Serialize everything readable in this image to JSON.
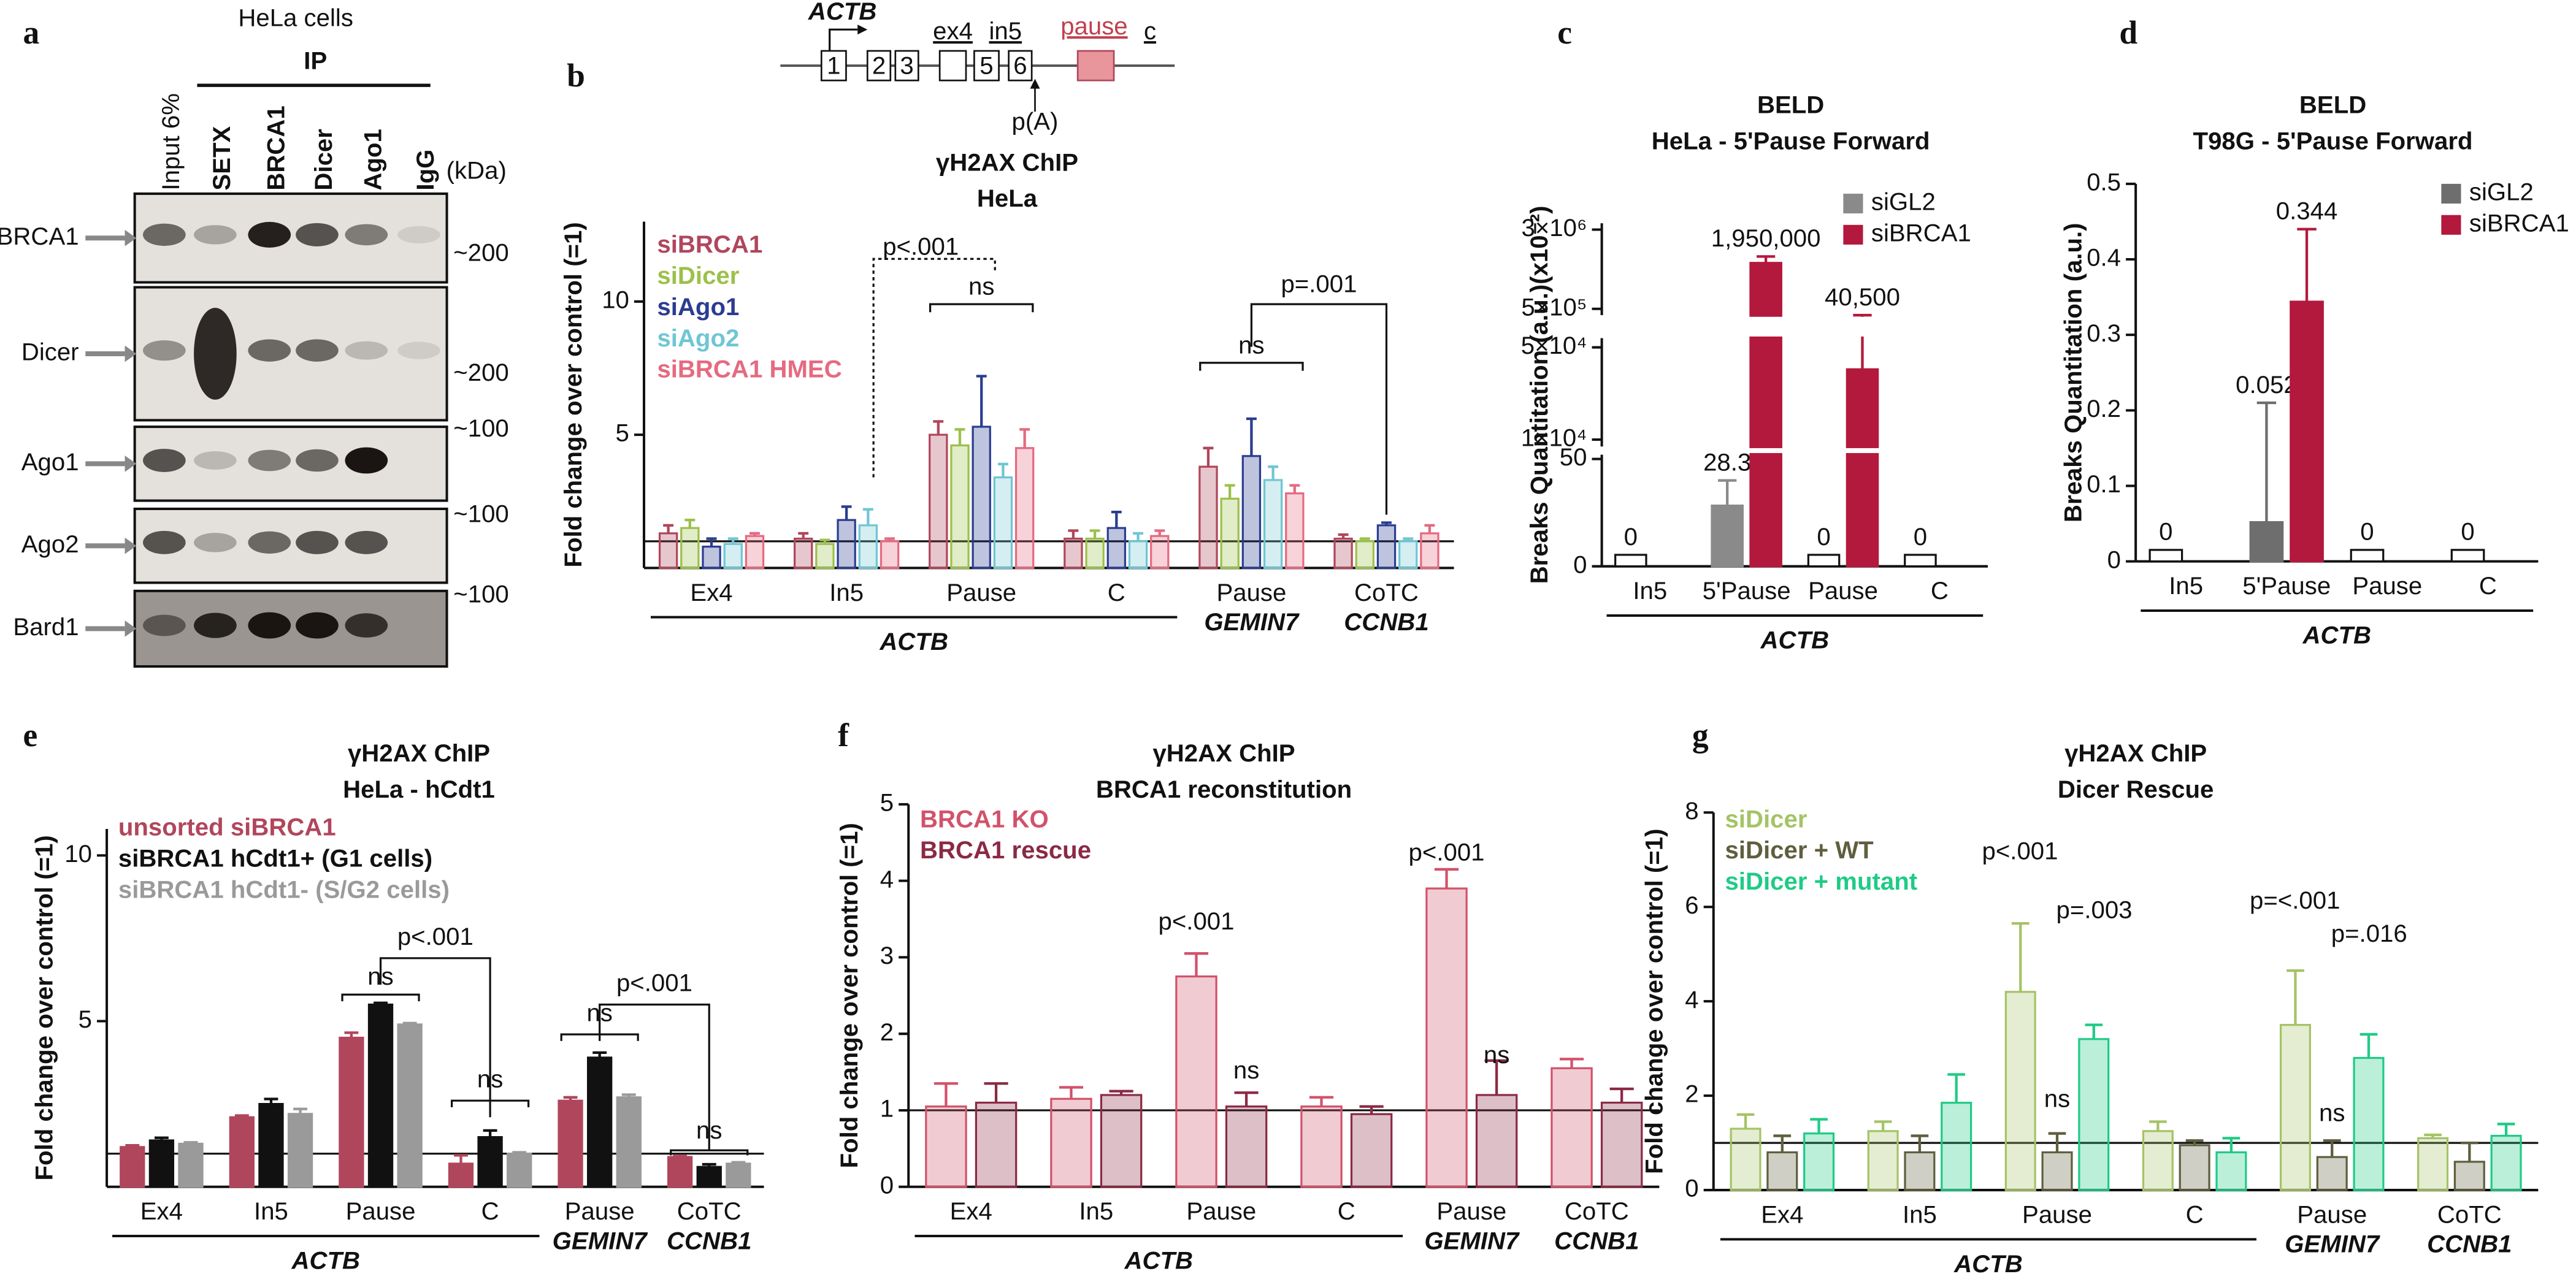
{
  "panel_labels": [
    "a",
    "b",
    "c",
    "d",
    "e",
    "f",
    "g"
  ],
  "blot": {
    "title": "HeLa cells",
    "group": "IP",
    "unit": "(kDa)",
    "lanes": [
      "Input 6%",
      "SETX",
      "BRCA1",
      "Dicer",
      "Ago1",
      "IgG"
    ],
    "rows": [
      {
        "name": "BRCA1",
        "marker": "~200"
      },
      {
        "name": "Dicer",
        "marker": "~200"
      },
      {
        "name": "Ago1",
        "marker": "~100"
      },
      {
        "name": "Ago2",
        "marker": "~100"
      },
      {
        "name": "Bard1",
        "marker": "~100"
      }
    ]
  },
  "gene_diagram": {
    "gene": "ACTB",
    "exons": [
      "1",
      "2",
      "3",
      "",
      "5",
      "6"
    ],
    "regions": [
      "ex4",
      "in5",
      "pause",
      "c"
    ],
    "polya": "p(A)"
  },
  "chart_data": [
    {
      "type": "bar",
      "title": "γH2AX ChIP",
      "subtitle": "HeLa",
      "ylabel": "Fold change over control (=1)",
      "categories": [
        "Ex4",
        "In5",
        "Pause",
        "C",
        "Pause",
        "CoTC"
      ],
      "group_labels": [
        "ACTB",
        "GEMIN7",
        "CCNB1"
      ],
      "ylim": [
        0,
        13
      ],
      "yticks": [
        5,
        10
      ],
      "reference_line": 1,
      "bar_fill": "light",
      "legend_style": "text",
      "series": [
        {
          "name": "siBRCA1",
          "color": "#b0465c",
          "values": [
            1.3,
            1.1,
            5.0,
            1.1,
            3.8,
            1.1
          ],
          "errors": [
            0.3,
            0.2,
            0.5,
            0.3,
            0.7,
            0.15
          ]
        },
        {
          "name": "siDicer",
          "color": "#9cc04a",
          "values": [
            1.5,
            0.9,
            4.6,
            1.1,
            2.6,
            1.0
          ],
          "errors": [
            0.3,
            0.15,
            0.6,
            0.3,
            0.5,
            0.1
          ]
        },
        {
          "name": "siAgo1",
          "color": "#2b3d91",
          "values": [
            0.8,
            1.8,
            5.3,
            1.5,
            4.2,
            1.6
          ],
          "errors": [
            0.3,
            0.5,
            1.9,
            0.6,
            1.4,
            0.1
          ]
        },
        {
          "name": "siAgo2",
          "color": "#6fc6d3",
          "values": [
            0.9,
            1.6,
            3.4,
            1.0,
            3.3,
            1.0
          ],
          "errors": [
            0.2,
            0.6,
            0.5,
            0.3,
            0.5,
            0.1
          ]
        },
        {
          "name": "siBRCA1 HMEC",
          "color": "#e56a80",
          "values": [
            1.2,
            1.0,
            4.5,
            1.2,
            2.8,
            1.3
          ],
          "errors": [
            0.1,
            0.1,
            0.7,
            0.2,
            0.3,
            0.3
          ]
        }
      ],
      "annotations": [
        "p<.001",
        "ns",
        "ns",
        "p=.001"
      ]
    },
    {
      "type": "bar",
      "title": "BELD",
      "subtitle": "HeLa - 5'Pause Forward",
      "ylabel": "Breaks Quantitation (a.u.)(x10⁻²)",
      "categories": [
        "In5",
        "5'Pause",
        "Pause",
        "C"
      ],
      "group_labels": [
        "ACTB"
      ],
      "bar_fill": "solid",
      "legend_style": "swatch",
      "ysegments": [
        {
          "ylim": [
            0,
            52
          ],
          "yticks": [
            0,
            50
          ]
        },
        {
          "ylim": [
            7000,
            54000
          ],
          "yticks": [
            {
              "value": 10000,
              "label": "1×10⁴"
            },
            {
              "value": 50000,
              "label": "5×10⁴"
            }
          ]
        },
        {
          "ylim": [
            300000,
            3200000
          ],
          "yticks": [
            {
              "value": 500000,
              "label": "5×10⁵"
            },
            {
              "value": 3000000,
              "label": "3×10⁶"
            }
          ]
        }
      ],
      "series": [
        {
          "name": "siGL2",
          "color": "#8a8a8a",
          "values": [
            0,
            28.3,
            0,
            0
          ],
          "errors": [
            null,
            11.7,
            null,
            null
          ],
          "value_labels": [
            "0",
            "28.3",
            "0",
            "0"
          ]
        },
        {
          "name": "siBRCA1",
          "color": "#b3193c",
          "values": [
            null,
            1950000,
            40500,
            null
          ],
          "errors": [
            null,
            200000,
            14500,
            null
          ],
          "value_labels": [
            null,
            "1,950,000",
            "40,500",
            null
          ]
        }
      ]
    },
    {
      "type": "bar",
      "title": "BELD",
      "subtitle": "T98G - 5'Pause Forward",
      "ylabel": "Breaks Quantitation (a.u.)",
      "categories": [
        "In5",
        "5'Pause",
        "Pause",
        "C"
      ],
      "group_labels": [
        "ACTB"
      ],
      "bar_fill": "solid",
      "legend_style": "swatch",
      "data_labels": true,
      "ylim": [
        0,
        0.5
      ],
      "yticks": [
        0,
        0.1,
        0.2,
        0.3,
        0.4,
        0.5
      ],
      "series": [
        {
          "name": "siGL2",
          "color": "#6e6e6e",
          "values": [
            0,
            0.052,
            0,
            0
          ],
          "errors": [
            null,
            0.158,
            null,
            null
          ]
        },
        {
          "name": "siBRCA1",
          "color": "#b3193c",
          "values": [
            null,
            0.344,
            null,
            null
          ],
          "errors": [
            null,
            0.096,
            null,
            null
          ]
        }
      ]
    },
    {
      "type": "bar",
      "title": "γH2AX ChIP",
      "subtitle": "HeLa - hCdt1",
      "ylabel": "Fold change over control (=1)",
      "categories": [
        "Ex4",
        "In5",
        "Pause",
        "C",
        "Pause",
        "CoTC"
      ],
      "group_labels": [
        "ACTB",
        "GEMIN7",
        "CCNB1"
      ],
      "ylim": [
        0,
        10.8
      ],
      "yticks": [
        5,
        10
      ],
      "reference_line": 1,
      "bar_fill": "solid",
      "legend_style": "text",
      "series": [
        {
          "name": "unsorted siBRCA1",
          "color": "#b0465c",
          "values": [
            1.2,
            2.1,
            4.5,
            0.7,
            2.6,
            0.9
          ],
          "errors": [
            0.05,
            0.05,
            0.15,
            0.25,
            0.1,
            0.03
          ]
        },
        {
          "name": "siBRCA1 hCdt1+ (G1 cells)",
          "color": "#111111",
          "values": [
            1.4,
            2.5,
            5.5,
            1.5,
            3.9,
            0.6
          ],
          "errors": [
            0.08,
            0.15,
            0.05,
            0.2,
            0.15,
            0.08
          ]
        },
        {
          "name": "siBRCA1 hCdt1- (S/G2 cells)",
          "color": "#9a9a9a",
          "values": [
            1.3,
            2.2,
            4.9,
            1.0,
            2.7,
            0.7
          ],
          "errors": [
            0.04,
            0.15,
            0.04,
            0.04,
            0.08,
            0.04
          ]
        }
      ],
      "annotations": [
        "ns",
        "p<.001",
        "ns",
        "ns",
        "p<.001",
        "ns"
      ]
    },
    {
      "type": "bar",
      "title": "γH2AX ChIP",
      "subtitle": "BRCA1 reconstitution",
      "ylabel": "Fold change over control (=1)",
      "categories": [
        "Ex4",
        "In5",
        "Pause",
        "C",
        "Pause",
        "CoTC"
      ],
      "group_labels": [
        "ACTB",
        "GEMIN7",
        "CCNB1"
      ],
      "ylim": [
        0,
        5
      ],
      "yticks": [
        0,
        1,
        2,
        3,
        4,
        5
      ],
      "reference_line": 1,
      "bar_fill": "light",
      "legend_style": "text",
      "series": [
        {
          "name": "BRCA1 KO",
          "color": "#d2526b",
          "values": [
            1.05,
            1.15,
            2.75,
            1.05,
            3.9,
            1.55
          ],
          "errors": [
            0.3,
            0.15,
            0.3,
            0.12,
            0.25,
            0.12
          ]
        },
        {
          "name": "BRCA1 rescue",
          "color": "#8b2a45",
          "values": [
            1.1,
            1.2,
            1.05,
            0.95,
            1.2,
            1.1
          ],
          "errors": [
            0.25,
            0.05,
            0.18,
            0.1,
            0.45,
            0.18
          ]
        }
      ],
      "annotations": [
        "p<.001",
        "ns",
        "p<.001",
        "ns"
      ]
    },
    {
      "type": "bar",
      "title": "γH2AX ChIP",
      "subtitle": "Dicer Rescue",
      "ylabel": "Fold change over control (=1)",
      "categories": [
        "Ex4",
        "In5",
        "Pause",
        "C",
        "Pause",
        "CoTC"
      ],
      "group_labels": [
        "ACTB",
        "GEMIN7",
        "CCNB1"
      ],
      "ylim": [
        0,
        8
      ],
      "yticks": [
        0,
        2,
        4,
        6,
        8
      ],
      "reference_line": 1,
      "bar_fill": "light",
      "legend_style": "text",
      "series": [
        {
          "name": "siDicer",
          "color": "#a5c366",
          "values": [
            1.3,
            1.25,
            4.2,
            1.25,
            3.5,
            1.1
          ],
          "errors": [
            0.3,
            0.2,
            1.45,
            0.2,
            1.15,
            0.07
          ]
        },
        {
          "name": "siDicer + WT",
          "color": "#5f5f3f",
          "values": [
            0.8,
            0.8,
            0.8,
            0.95,
            0.7,
            0.6
          ],
          "errors": [
            0.35,
            0.35,
            0.4,
            0.1,
            0.35,
            0.4
          ]
        },
        {
          "name": "siDicer + mutant",
          "color": "#1fcb86",
          "values": [
            1.2,
            1.85,
            3.2,
            0.8,
            2.8,
            1.15
          ],
          "errors": [
            0.3,
            0.6,
            0.3,
            0.3,
            0.5,
            0.25
          ]
        }
      ],
      "annotations": [
        "p<.001",
        "p=.003",
        "ns",
        "p=<.001",
        "p=.016",
        "ns"
      ]
    }
  ]
}
